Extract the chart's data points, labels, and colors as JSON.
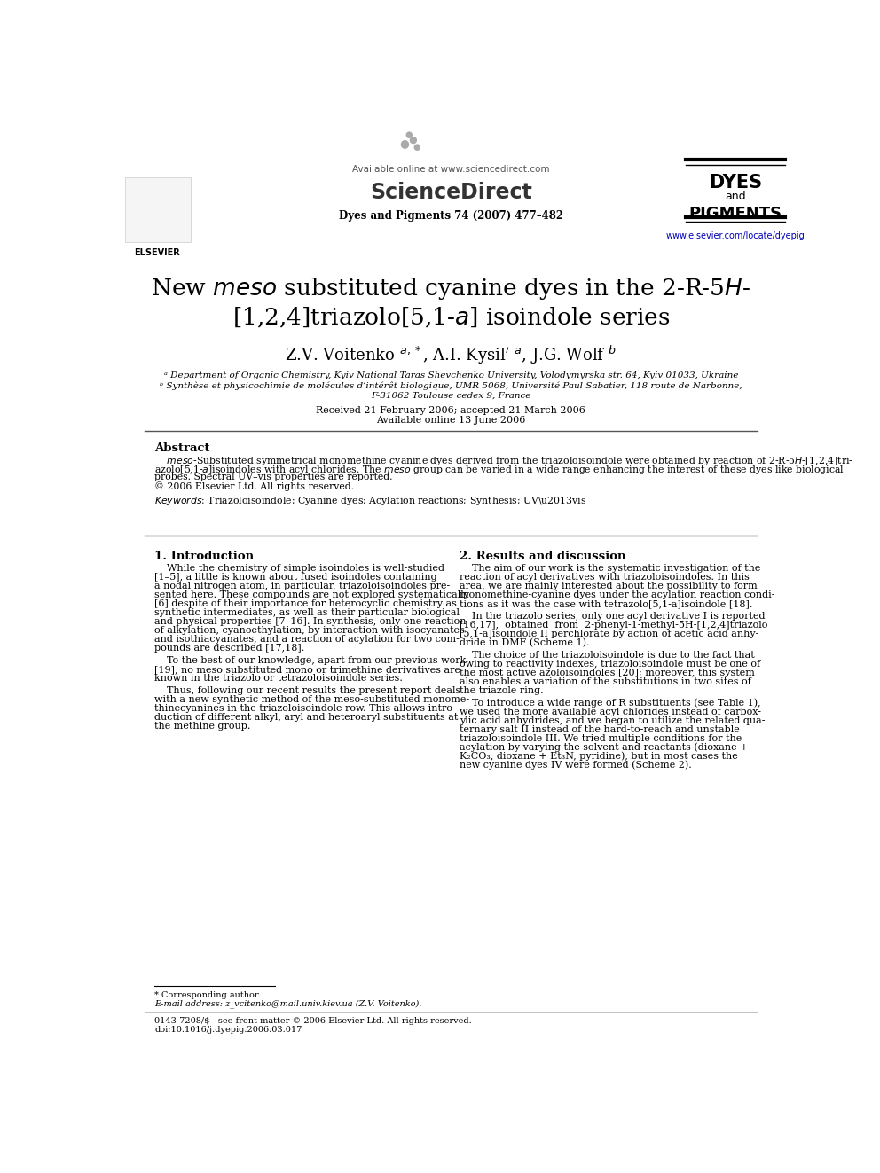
{
  "bg_color": "#ffffff",
  "header_available": "Available online at www.sciencedirect.com",
  "header_journal_info": "Dyes and Pigments 74 (2007) 477–482",
  "header_journal_url": "www.elsevier.com/locate/dyepig",
  "affil_a": "ᵃ Department of Organic Chemistry, Kyiv National Taras Shevchenko University, Volodymyrska str. 64, Kyiv 01033, Ukraine",
  "affil_b": "ᵇ Synthèse et physicochimie de molécules d’intérêt biologique, UMR 5068, Université Paul Sabatier, 118 route de Narbonne,",
  "affil_b2": "F-31062 Toulouse cedex 9, France",
  "received": "Received 21 February 2006; accepted 21 March 2006",
  "available": "Available online 13 June 2006",
  "abstract_title": "Abstract",
  "keywords_line": "Keywords: Triazoloisoindole; Cyanine dyes; Acylation reactions; Synthesis; UV–vis",
  "section1_title": "1. Introduction",
  "section2_title": "2. Results and discussion",
  "footnote_star": "* Corresponding author.",
  "footnote_email": "E-mail address: z_vcitenko@mail.univ.kiev.ua (Z.V. Voitenko).",
  "footnote_bottom1": "0143-7208/$ - see front matter © 2006 Elsevier Ltd. All rights reserved.",
  "footnote_bottom2": "doi:10.1016/j.dyepig.2006.03.017",
  "s1p1_lines": [
    "    While the chemistry of simple isoindoles is well-studied",
    "[1–5], a little is known about fused isoindoles containing",
    "a nodal nitrogen atom, in particular, triazoloisoindoles pre-",
    "sented here. These compounds are not explored systematically",
    "[6] despite of their importance for heterocyclic chemistry as",
    "synthetic intermediates, as well as their particular biological",
    "and physical properties [7–16]. In synthesis, only one reaction",
    "of alkylation, cyanoethylation, by interaction with isocyanates",
    "and isothiacyanates, and a reaction of acylation for two com-",
    "pounds are described [17,18]."
  ],
  "s1p2_lines": [
    "    To the best of our knowledge, apart from our previous work",
    "[19], no meso substituted mono or trimethine derivatives are",
    "known in the triazolo or tetrazoloisoindole series."
  ],
  "s1p3_lines": [
    "    Thus, following our recent results the present report deals",
    "with a new synthetic method of the meso-substituted monome-",
    "thinecyanines in the triazoloisoindole row. This allows intro-",
    "duction of different alkyl, aryl and heteroaryl substituents at",
    "the methine group."
  ],
  "s2p1_lines": [
    "    The aim of our work is the systematic investigation of the",
    "reaction of acyl derivatives with triazoloisoindoles. In this",
    "area, we are mainly interested about the possibility to form",
    "monomethine­cyanine dyes under the acylation reaction condi-",
    "tions as it was the case with tetrazolo[5,1-a]isoindole [18]."
  ],
  "s2p2_lines": [
    "    In the triazolo series, only one acyl derivative I is reported",
    "[16,17],  obtained  from  2-phenyl-1-methyl-5H-[1,2,4]triazolo",
    "[5,1-a]isoindole II perchlorate by action of acetic acid anhy-",
    "dride in DMF (Scheme 1)."
  ],
  "s2p3_lines": [
    "    The choice of the triazoloisoindole is due to the fact that",
    "owing to reactivity indexes, triazoloisoindole must be one of",
    "the most active azoloisoindoles [20]; moreover, this system",
    "also enables a variation of the substitutions in two sites of",
    "the triazole ring."
  ],
  "s2p4_lines": [
    "    To introduce a wide range of R substituents (see Table 1),",
    "we used the more available acyl chlorides instead of carbox-",
    "ylic acid anhydrides, and we began to utilize the related qua-",
    "ternary salt II instead of the hard-to-reach and unstable",
    "triazoloisoindole III. We tried multiple conditions for the",
    "acylation by varying the solvent and reactants (dioxane +",
    "K₂CO₃, dioxane + Et₃N, pyridine), but in most cases the",
    "new cyanine dyes IV were formed (Scheme 2)."
  ],
  "abs_line1": "    meso-Substituted symmetrical monomethine cyanine dyes derived from the triazoloisoindole were obtained by reaction of 2-R-5H-[1,2,4]tri-",
  "abs_line2": "azolo[5,1-a]isoindoles with acyl chlorides. The meso group can be varied in a wide range enhancing the interest of these dyes like biological",
  "abs_line3": "probes. Spectral UV–vis properties are reported.",
  "abs_line4": "© 2006 Elsevier Ltd. All rights reserved."
}
